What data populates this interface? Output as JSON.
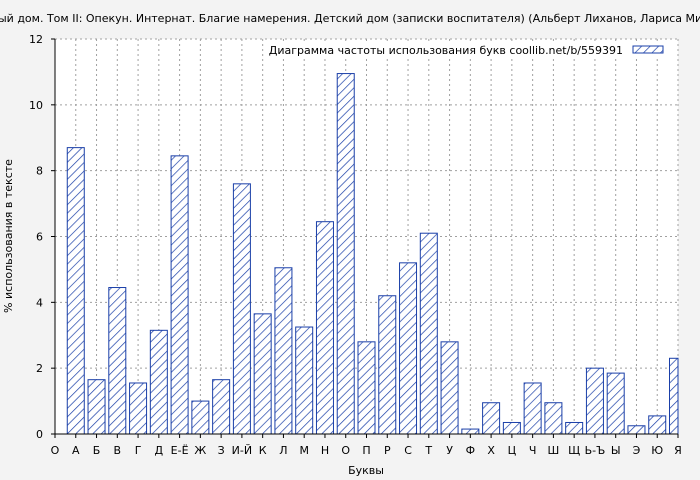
{
  "chart_data": {
    "type": "bar",
    "title": "ый дом. Том II: Опекун. Интернат. Благие намерения. Детский дом (записки воспитателя) (Альберт Лиханов, Лариса Мироно",
    "xlabel": "Буквы",
    "ylabel": "% использования в тексте",
    "ylim": [
      0,
      12
    ],
    "yticks": [
      0,
      2,
      4,
      6,
      8,
      10,
      12
    ],
    "grid": true,
    "legend_position": "top-right",
    "legend_label": "Диаграмма частоты использования букв  coollib.net/b/559391",
    "categories": [
      "О",
      "А",
      "Б",
      "В",
      "Г",
      "Д",
      "Е-Ё",
      "Ж",
      "З",
      "И-Й",
      "К",
      "Л",
      "М",
      "Н",
      "О",
      "П",
      "Р",
      "С",
      "Т",
      "У",
      "Ф",
      "Х",
      "Ц",
      "Ч",
      "Ш",
      "Щ",
      "Ь-Ъ",
      "Ы",
      "Э",
      "Ю",
      "Я"
    ],
    "values": [
      null,
      8.7,
      1.65,
      4.45,
      1.55,
      3.15,
      8.45,
      1.0,
      1.65,
      7.6,
      3.65,
      5.05,
      3.25,
      6.45,
      10.95,
      2.8,
      4.2,
      5.2,
      6.1,
      2.8,
      0.15,
      0.95,
      0.35,
      1.55,
      0.95,
      0.35,
      2.0,
      1.85,
      0.25,
      0.55,
      2.3
    ],
    "bar_color": "#1a3fa8"
  }
}
